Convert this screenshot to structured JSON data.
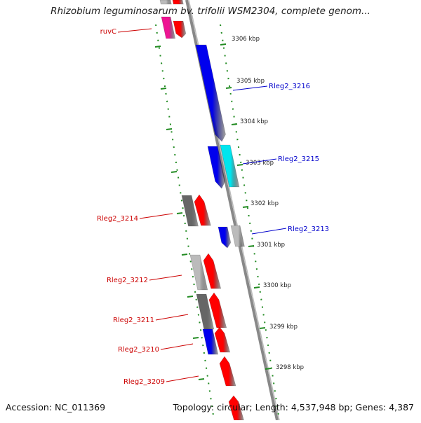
{
  "title": "Rhizobium leguminosarum bv. trifolii WSM2304, complete genom...",
  "footer": {
    "accession": "Accession: NC_011369",
    "summary": "Topology: circular; Length: 4,537,948 bp; Genes: 4,387"
  },
  "colors": {
    "forward_gene": "#ff0000",
    "reverse_gene": "#0000ee",
    "pseudo_dark": "#666666",
    "pseudo_light": "#bbbbbb",
    "rna_cyan": "#00e5ee",
    "magenta": "#ee1493",
    "ruler": "#228b22",
    "backbone": "#888888",
    "label_forward": "#cc0000",
    "label_reverse": "#0000cc"
  },
  "ticks": [
    {
      "label": "3306 kbp"
    },
    {
      "label": "3305 kbp"
    },
    {
      "label": "3304 kbp"
    },
    {
      "label": "3303 kbp"
    },
    {
      "label": "3302 kbp"
    },
    {
      "label": "3301 kbp"
    },
    {
      "label": "3300 kbp"
    },
    {
      "label": "3299 kbp"
    },
    {
      "label": "3298 kbp"
    }
  ],
  "gene_labels": [
    {
      "name": "ruvC",
      "strand": "forward"
    },
    {
      "name": "Rleg2_3216",
      "strand": "reverse"
    },
    {
      "name": "Rleg2_3215",
      "strand": "reverse"
    },
    {
      "name": "Rleg2_3214",
      "strand": "forward"
    },
    {
      "name": "Rleg2_3213",
      "strand": "reverse"
    },
    {
      "name": "Rleg2_3212",
      "strand": "forward"
    },
    {
      "name": "Rleg2_3211",
      "strand": "forward"
    },
    {
      "name": "Rleg2_3210",
      "strand": "forward"
    },
    {
      "name": "Rleg2_3209",
      "strand": "forward"
    }
  ]
}
